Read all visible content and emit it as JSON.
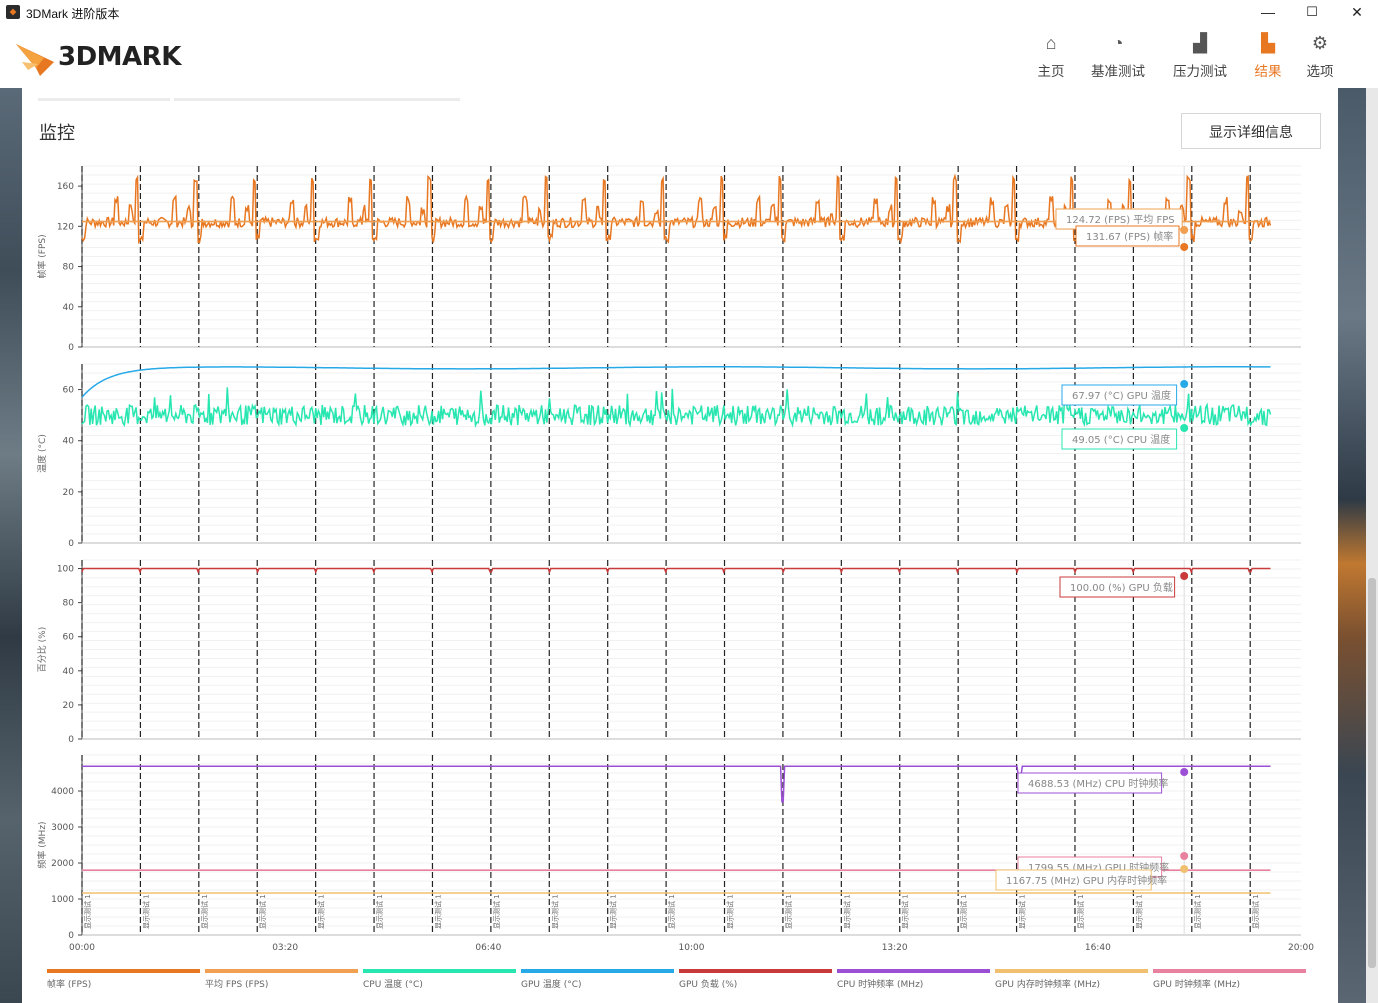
{
  "window": {
    "title": "3DMark 进阶版本",
    "minimize": "—",
    "maximize": "☐",
    "close": "✕"
  },
  "logo": {
    "text": "3DMARK"
  },
  "nav": [
    {
      "label": "主页",
      "icon": "home-icon",
      "glyph": "⌂"
    },
    {
      "label": "基准测试",
      "icon": "gauge-icon",
      "glyph": "◔"
    },
    {
      "label": "压力测试",
      "icon": "bar-chart-icon",
      "glyph": "▟"
    },
    {
      "label": "结果",
      "icon": "results-icon",
      "glyph": "▙"
    },
    {
      "label": "选项",
      "icon": "gear-icon",
      "glyph": "⚙"
    }
  ],
  "active_nav": 3,
  "section": {
    "title": "监控",
    "detail_button": "显示详细信息"
  },
  "colors": {
    "accent": "#e87722",
    "fps": "#e87722",
    "avg_fps": "#f0a050",
    "cpu_temp": "#27e6b0",
    "gpu_temp": "#27a9e8",
    "gpu_load": "#c93a3a",
    "cpu_clock": "#9b4fd4",
    "gpu_mem_clock": "#f0c070",
    "gpu_clock": "#e880a0"
  },
  "chart_data": {
    "type": "line",
    "x_unit": "time (mm:ss)",
    "x_ticks": [
      "00:00",
      "03:20",
      "06:40",
      "10:00",
      "13:20",
      "16:40",
      "20:00"
    ],
    "x_range_seconds": [
      0,
      1200
    ],
    "test_marker_label": "显示测试 1",
    "test_marker_count": 21,
    "loop_period_seconds": 57.5,
    "cursor_seconds": 1085,
    "panels": [
      {
        "ylabel": "帧率 (FPS)",
        "ylim": [
          0,
          180
        ],
        "yticks": [
          0,
          40,
          80,
          120,
          160
        ],
        "series": [
          {
            "name": "帧率 (FPS)",
            "color": "#e87722",
            "pattern": "fps",
            "base": 124,
            "peak": 170,
            "low": 104
          },
          {
            "name": "平均 FPS (FPS)",
            "color": "#f0a050",
            "pattern": "flat",
            "value": 124.72
          }
        ],
        "annotations": [
          {
            "text": "124.72 (FPS) 平均 FPS",
            "color": "#f0a050"
          },
          {
            "text": "131.67 (FPS) 帧率",
            "color": "#e87722"
          }
        ]
      },
      {
        "ylabel": "温度 (°C)",
        "ylim": [
          0,
          70
        ],
        "yticks": [
          0,
          20,
          40,
          60
        ],
        "series": [
          {
            "name": "GPU 温度 (°C)",
            "color": "#27a9e8",
            "pattern": "warmup",
            "start": 57,
            "value": 68.5
          },
          {
            "name": "CPU 温度 (°C)",
            "color": "#27e6b0",
            "pattern": "noisy",
            "value": 50,
            "jitter": 4,
            "spike": 61
          }
        ],
        "annotations": [
          {
            "text": "67.97 (°C) GPU 温度",
            "color": "#27a9e8"
          },
          {
            "text": "49.05 (°C) CPU 温度",
            "color": "#27e6b0"
          }
        ]
      },
      {
        "ylabel": "百分比 (%)",
        "ylim": [
          0,
          105
        ],
        "yticks": [
          0,
          20,
          40,
          60,
          80,
          100
        ],
        "series": [
          {
            "name": "GPU 负载 (%)",
            "color": "#c93a3a",
            "pattern": "load",
            "value": 100,
            "dip": 98
          }
        ],
        "annotations": [
          {
            "text": "100.00 (%) GPU 负载",
            "color": "#c93a3a"
          }
        ]
      },
      {
        "ylabel": "频率 (MHz)",
        "ylim": [
          0,
          5000
        ],
        "yticks": [
          0,
          1000,
          2000,
          3000,
          4000
        ],
        "series": [
          {
            "name": "CPU 时钟频率 (MHz)",
            "color": "#9b4fd4",
            "pattern": "clock",
            "value": 4688,
            "dip_seconds": [
              690,
              923
            ],
            "dip_values": [
              3700,
              4400
            ]
          },
          {
            "name": "GPU 时钟频率 (MHz)",
            "color": "#e880a0",
            "pattern": "flat",
            "value": 1800
          },
          {
            "name": "GPU 内存时钟频率 (MHz)",
            "color": "#f0c070",
            "pattern": "flat",
            "value": 1168
          }
        ],
        "annotations": [
          {
            "text": "4688.53 (MHz) CPU 时钟频率",
            "color": "#9b4fd4"
          },
          {
            "text": "1799.55 (MHz) GPU 时钟频率",
            "color": "#e880a0"
          },
          {
            "text": "1167.75 (MHz) GPU 内存时钟频率",
            "color": "#f0c070"
          }
        ]
      }
    ],
    "legend": [
      {
        "name": "帧率 (FPS)",
        "color": "#e87722"
      },
      {
        "name": "平均 FPS (FPS)",
        "color": "#f0a050"
      },
      {
        "name": "CPU 温度 (°C)",
        "color": "#27e6b0"
      },
      {
        "name": "GPU 温度 (°C)",
        "color": "#27a9e8"
      },
      {
        "name": "GPU 负载 (%)",
        "color": "#c93a3a"
      },
      {
        "name": "CPU 时钟频率 (MHz)",
        "color": "#9b4fd4"
      },
      {
        "name": "GPU 内存时钟频率 (MHz)",
        "color": "#f0c070"
      },
      {
        "name": "GPU 时钟频率 (MHz)",
        "color": "#e880a0"
      }
    ]
  }
}
